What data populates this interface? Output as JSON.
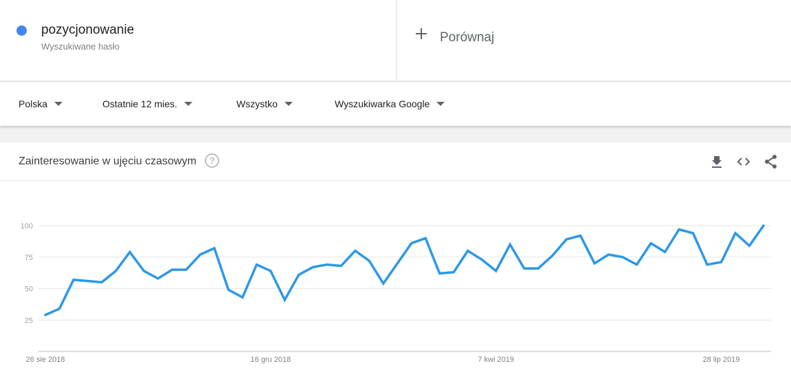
{
  "search_term": {
    "name": "pozycjonowanie",
    "type": "Wyszukiwane hasło",
    "color": "#4285f4"
  },
  "compare": {
    "label": "Porównaj",
    "icon": "plus-icon"
  },
  "filters": [
    {
      "label": "Polska"
    },
    {
      "label": "Ostatnie 12 mies."
    },
    {
      "label": "Wszystko"
    },
    {
      "label": "Wyszukiwarka Google"
    }
  ],
  "card": {
    "title": "Zainteresowanie w ujęciu czasowym",
    "help_icon": "?",
    "actions": [
      "download-icon",
      "embed-icon",
      "share-icon"
    ]
  },
  "chart_data": {
    "type": "line",
    "title": "",
    "xlabel": "",
    "ylabel": "",
    "ylim": [
      0,
      100
    ],
    "yticks": [
      25,
      50,
      75,
      100
    ],
    "grid": true,
    "x_tick_labels": [
      {
        "index": 0,
        "label": "26 sie 2018"
      },
      {
        "index": 16,
        "label": "16 gru 2018"
      },
      {
        "index": 32,
        "label": "7 kwi 2019"
      },
      {
        "index": 48,
        "label": "28 lip 2019"
      }
    ],
    "series": [
      {
        "color": "#2b98e8",
        "values": [
          29,
          34,
          57,
          56,
          55,
          64,
          79,
          64,
          58,
          65,
          65,
          77,
          82,
          49,
          43,
          69,
          64,
          41,
          61,
          67,
          69,
          68,
          80,
          72,
          54,
          70,
          86,
          90,
          62,
          63,
          80,
          73,
          64,
          85,
          66,
          66,
          76,
          89,
          92,
          70,
          77,
          75,
          69,
          86,
          79,
          97,
          94,
          69,
          71,
          94,
          84,
          100
        ]
      }
    ]
  }
}
